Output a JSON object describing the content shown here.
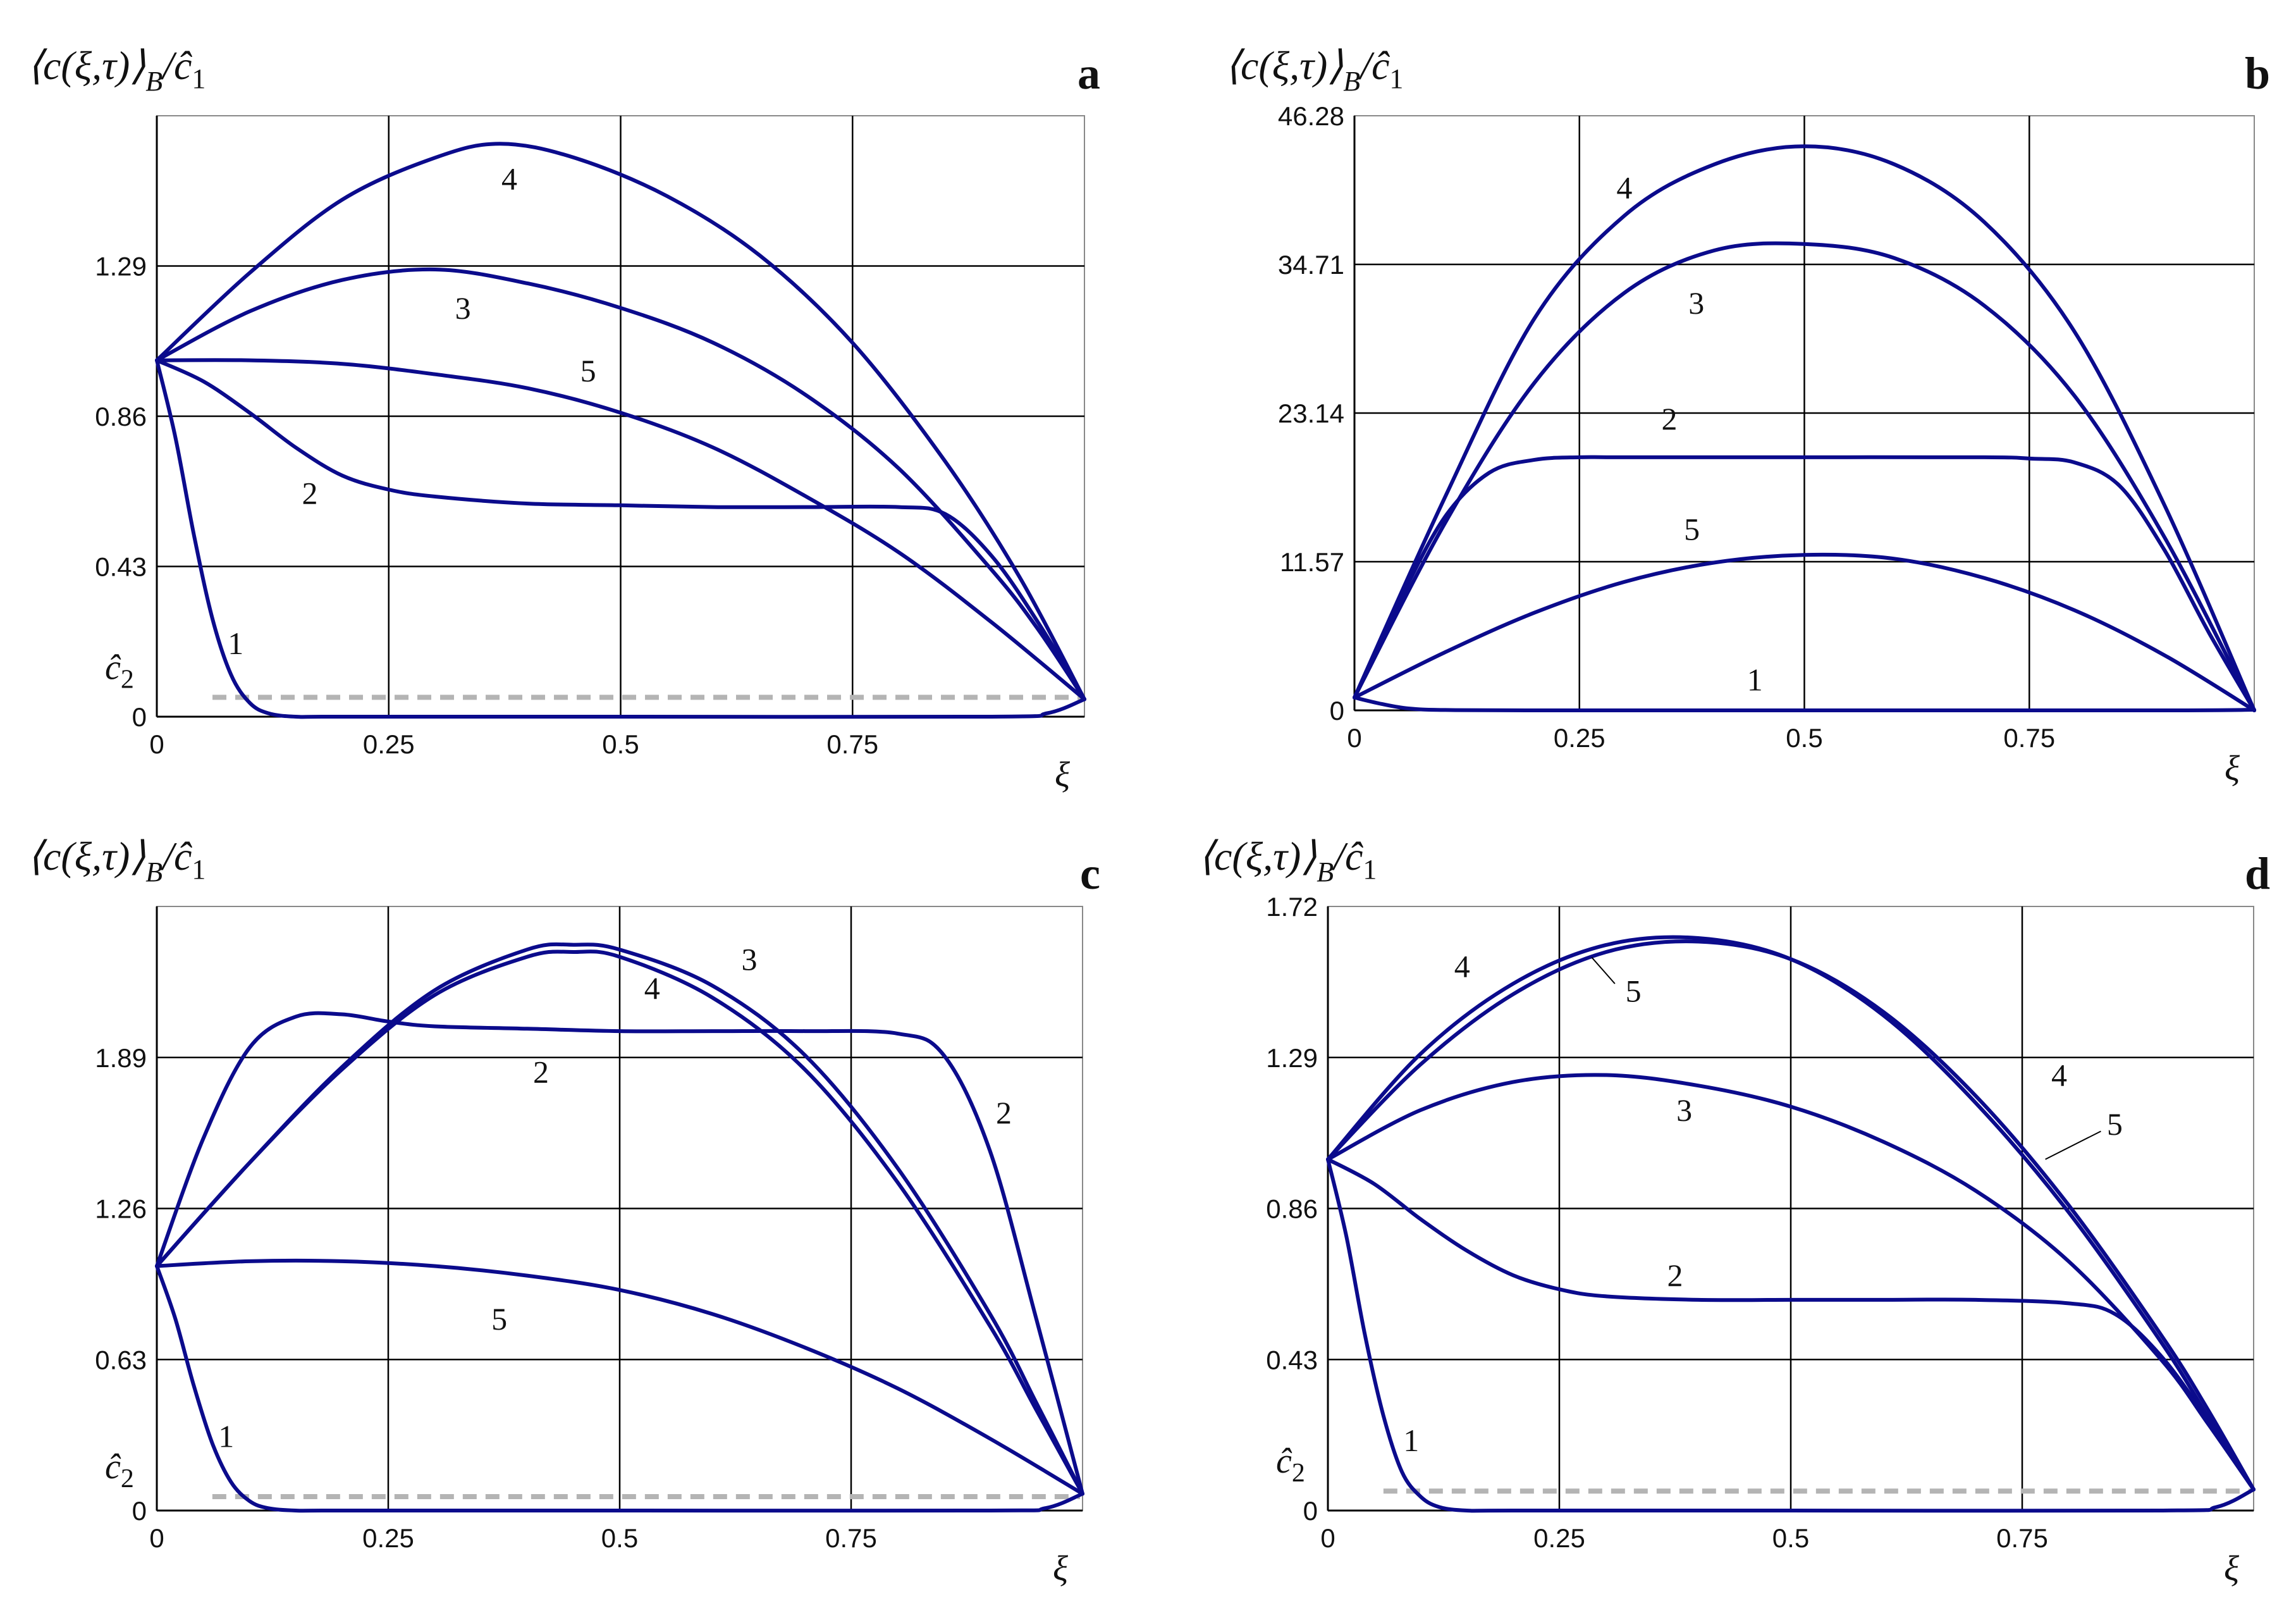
{
  "figure": {
    "y_label": "⟨c(ξ,τ)⟩B/ĉ1",
    "x_label": "ξ",
    "c2_label": "ĉ2"
  },
  "colors": {
    "curve": "#0b0b8c",
    "grid": "#000000",
    "dashed": "#b4b4b4"
  },
  "chart_data": [
    {
      "panel": "a",
      "type": "line",
      "x_ticks": [
        0,
        0.25,
        0.5,
        0.75
      ],
      "x_tick_labels": [
        "0",
        "0.25",
        "0.5",
        "0.75"
      ],
      "y_ticks": [
        0,
        0.43,
        0.86,
        1.29
      ],
      "y_tick_labels": [
        "0",
        "0.43",
        "0.86",
        "1.29"
      ],
      "xlim": [
        0,
        1
      ],
      "ylim": [
        0,
        1.72
      ],
      "dashed_level": 0.05,
      "show_c2": true,
      "series": [
        {
          "name": "1",
          "x": [
            0,
            0.02,
            0.04,
            0.06,
            0.08,
            0.1,
            0.12,
            0.15,
            0.2,
            0.5,
            0.9,
            0.96,
            1.0
          ],
          "y": [
            1.02,
            0.8,
            0.52,
            0.28,
            0.12,
            0.04,
            0.01,
            0.0,
            0.0,
            0.0,
            0.0,
            0.01,
            0.05
          ]
        },
        {
          "name": "2",
          "x": [
            0,
            0.05,
            0.1,
            0.15,
            0.2,
            0.25,
            0.3,
            0.4,
            0.5,
            0.6,
            0.7,
            0.8,
            0.85,
            0.9,
            0.95,
            1.0
          ],
          "y": [
            1.02,
            0.96,
            0.87,
            0.77,
            0.69,
            0.65,
            0.63,
            0.61,
            0.605,
            0.6,
            0.6,
            0.6,
            0.58,
            0.46,
            0.27,
            0.05
          ]
        },
        {
          "name": "3",
          "x": [
            0,
            0.1,
            0.2,
            0.3,
            0.4,
            0.5,
            0.6,
            0.7,
            0.8,
            0.9,
            0.95,
            1.0
          ],
          "y": [
            1.02,
            1.16,
            1.25,
            1.28,
            1.24,
            1.17,
            1.07,
            0.92,
            0.71,
            0.42,
            0.25,
            0.05
          ]
        },
        {
          "name": "4",
          "x": [
            0,
            0.1,
            0.2,
            0.3,
            0.37,
            0.45,
            0.55,
            0.65,
            0.75,
            0.85,
            0.93,
            1.0
          ],
          "y": [
            1.02,
            1.27,
            1.48,
            1.6,
            1.64,
            1.6,
            1.49,
            1.32,
            1.07,
            0.73,
            0.4,
            0.05
          ]
        },
        {
          "name": "5",
          "x": [
            0,
            0.1,
            0.2,
            0.3,
            0.4,
            0.5,
            0.6,
            0.7,
            0.8,
            0.9,
            1.0
          ],
          "y": [
            1.02,
            1.02,
            1.01,
            0.98,
            0.94,
            0.87,
            0.77,
            0.63,
            0.47,
            0.27,
            0.05
          ]
        }
      ],
      "labels": [
        {
          "text": "4",
          "x": 0.38,
          "y": 1.54
        },
        {
          "text": "3",
          "x": 0.33,
          "y": 1.17
        },
        {
          "text": "5",
          "x": 0.465,
          "y": 0.99
        },
        {
          "text": "2",
          "x": 0.165,
          "y": 0.64
        },
        {
          "text": "1",
          "x": 0.085,
          "y": 0.21
        }
      ]
    },
    {
      "panel": "b",
      "type": "line",
      "x_ticks": [
        0,
        0.25,
        0.5,
        0.75
      ],
      "x_tick_labels": [
        "0",
        "0.25",
        "0.5",
        "0.75"
      ],
      "y_ticks": [
        0,
        11.57,
        23.14,
        34.71,
        46.28
      ],
      "y_tick_labels": [
        "0",
        "11.57",
        "23.14",
        "34.71",
        "46.28"
      ],
      "xlim": [
        0,
        1
      ],
      "ylim": [
        0,
        46.28
      ],
      "dashed_level": null,
      "show_c2": false,
      "series": [
        {
          "name": "1",
          "x": [
            0,
            0.03,
            0.06,
            0.1,
            0.2,
            0.5,
            0.9,
            1.0
          ],
          "y": [
            1.0,
            0.5,
            0.15,
            0.03,
            0.0,
            0.0,
            0.0,
            0.05
          ]
        },
        {
          "name": "2",
          "x": [
            0,
            0.05,
            0.1,
            0.15,
            0.2,
            0.25,
            0.3,
            0.5,
            0.7,
            0.75,
            0.8,
            0.85,
            0.9,
            0.95,
            1.0
          ],
          "y": [
            1.0,
            8.5,
            15.0,
            18.5,
            19.5,
            19.7,
            19.7,
            19.7,
            19.7,
            19.6,
            19.3,
            17.5,
            12.5,
            6.0,
            0.0
          ]
        },
        {
          "name": "3",
          "x": [
            0,
            0.1,
            0.2,
            0.3,
            0.4,
            0.5,
            0.6,
            0.7,
            0.8,
            0.9,
            1.0
          ],
          "y": [
            1.0,
            14.5,
            25.5,
            32.5,
            35.8,
            36.3,
            35.2,
            31.5,
            24.5,
            13.5,
            0.0
          ]
        },
        {
          "name": "4",
          "x": [
            0,
            0.1,
            0.2,
            0.3,
            0.4,
            0.5,
            0.6,
            0.7,
            0.8,
            0.9,
            1.0
          ],
          "y": [
            1.0,
            16.5,
            30.5,
            38.5,
            42.5,
            43.9,
            42.5,
            38.0,
            29.5,
            16.0,
            0.0
          ]
        },
        {
          "name": "5",
          "x": [
            0,
            0.1,
            0.2,
            0.3,
            0.4,
            0.5,
            0.6,
            0.7,
            0.8,
            0.9,
            1.0
          ],
          "y": [
            1.0,
            4.5,
            7.6,
            10.0,
            11.5,
            12.1,
            11.8,
            10.3,
            7.8,
            4.3,
            0.0
          ]
        }
      ],
      "labels": [
        {
          "text": "4",
          "x": 0.3,
          "y": 40.7
        },
        {
          "text": "3",
          "x": 0.38,
          "y": 31.7
        },
        {
          "text": "2",
          "x": 0.35,
          "y": 22.7
        },
        {
          "text": "5",
          "x": 0.375,
          "y": 14.1
        },
        {
          "text": "1",
          "x": 0.445,
          "y": 2.4
        }
      ]
    },
    {
      "panel": "c",
      "type": "line",
      "x_ticks": [
        0,
        0.25,
        0.5,
        0.75
      ],
      "x_tick_labels": [
        "0",
        "0.25",
        "0.5",
        "0.75"
      ],
      "y_ticks": [
        0,
        0.63,
        1.26,
        1.89
      ],
      "y_tick_labels": [
        "0",
        "0.63",
        "1.26",
        "1.89"
      ],
      "xlim": [
        0,
        1
      ],
      "ylim": [
        0,
        2.52
      ],
      "dashed_level": 0.05,
      "show_c2": true,
      "series": [
        {
          "name": "1",
          "x": [
            0,
            0.02,
            0.04,
            0.06,
            0.08,
            0.1,
            0.12,
            0.15,
            0.2,
            0.5,
            0.9,
            0.96,
            1.0
          ],
          "y": [
            1.02,
            0.8,
            0.52,
            0.28,
            0.12,
            0.04,
            0.01,
            0.0,
            0.0,
            0.0,
            0.0,
            0.01,
            0.07
          ]
        },
        {
          "name": "2",
          "x": [
            0,
            0.05,
            0.1,
            0.15,
            0.2,
            0.25,
            0.3,
            0.4,
            0.5,
            0.6,
            0.7,
            0.8,
            0.85,
            0.9,
            0.95,
            1.0
          ],
          "y": [
            1.02,
            1.55,
            1.93,
            2.06,
            2.07,
            2.04,
            2.02,
            2.01,
            2.0,
            2.0,
            2.0,
            1.99,
            1.9,
            1.5,
            0.8,
            0.07
          ]
        },
        {
          "name": "3",
          "x": [
            0,
            0.1,
            0.2,
            0.3,
            0.4,
            0.45,
            0.5,
            0.6,
            0.7,
            0.8,
            0.9,
            0.95,
            1.0
          ],
          "y": [
            1.02,
            1.45,
            1.85,
            2.17,
            2.34,
            2.36,
            2.34,
            2.19,
            1.9,
            1.43,
            0.82,
            0.45,
            0.07
          ]
        },
        {
          "name": "4",
          "x": [
            0,
            0.1,
            0.2,
            0.3,
            0.4,
            0.45,
            0.5,
            0.6,
            0.7,
            0.8,
            0.9,
            0.95,
            1.0
          ],
          "y": [
            1.02,
            1.45,
            1.84,
            2.15,
            2.31,
            2.33,
            2.31,
            2.14,
            1.84,
            1.37,
            0.77,
            0.42,
            0.07
          ]
        },
        {
          "name": "5",
          "x": [
            0,
            0.1,
            0.2,
            0.3,
            0.4,
            0.5,
            0.6,
            0.7,
            0.8,
            0.9,
            1.0
          ],
          "y": [
            1.02,
            1.04,
            1.04,
            1.02,
            0.98,
            0.92,
            0.82,
            0.68,
            0.51,
            0.3,
            0.07
          ]
        }
      ],
      "labels": [
        {
          "text": "3",
          "x": 0.64,
          "y": 2.3
        },
        {
          "text": "4",
          "x": 0.535,
          "y": 2.18
        },
        {
          "text": "2",
          "x": 0.415,
          "y": 1.83
        },
        {
          "text": "2",
          "x": 0.915,
          "y": 1.66
        },
        {
          "text": "5",
          "x": 0.37,
          "y": 0.8
        },
        {
          "text": "1",
          "x": 0.075,
          "y": 0.31
        }
      ]
    },
    {
      "panel": "d",
      "type": "line",
      "x_ticks": [
        0,
        0.25,
        0.5,
        0.75
      ],
      "x_tick_labels": [
        "0",
        "0.25",
        "0.5",
        "0.75"
      ],
      "y_ticks": [
        0,
        0.43,
        0.86,
        1.29,
        1.72
      ],
      "y_tick_labels": [
        "0",
        "0.43",
        "0.86",
        "1.29",
        "1.72"
      ],
      "xlim": [
        0,
        1
      ],
      "ylim": [
        0,
        1.72
      ],
      "dashed_level": 0.05,
      "show_c2": true,
      "series": [
        {
          "name": "1",
          "x": [
            0,
            0.02,
            0.04,
            0.06,
            0.08,
            0.1,
            0.12,
            0.15,
            0.2,
            0.5,
            0.9,
            0.96,
            1.0
          ],
          "y": [
            1.0,
            0.78,
            0.5,
            0.27,
            0.11,
            0.04,
            0.01,
            0.0,
            0.0,
            0.0,
            0.0,
            0.01,
            0.06
          ]
        },
        {
          "name": "2",
          "x": [
            0,
            0.05,
            0.1,
            0.15,
            0.2,
            0.25,
            0.3,
            0.4,
            0.5,
            0.6,
            0.7,
            0.8,
            0.85,
            0.9,
            0.95,
            1.0
          ],
          "y": [
            1.0,
            0.93,
            0.83,
            0.74,
            0.67,
            0.63,
            0.61,
            0.6,
            0.6,
            0.6,
            0.6,
            0.59,
            0.56,
            0.44,
            0.26,
            0.06
          ]
        },
        {
          "name": "3",
          "x": [
            0,
            0.1,
            0.2,
            0.3,
            0.4,
            0.5,
            0.6,
            0.7,
            0.8,
            0.9,
            0.95,
            1.0
          ],
          "y": [
            1.0,
            1.14,
            1.22,
            1.24,
            1.21,
            1.15,
            1.05,
            0.91,
            0.71,
            0.43,
            0.25,
            0.06
          ]
        },
        {
          "name": "4",
          "x": [
            0,
            0.1,
            0.2,
            0.3,
            0.4,
            0.5,
            0.6,
            0.7,
            0.8,
            0.9,
            0.95,
            1.0
          ],
          "y": [
            1.0,
            1.3,
            1.5,
            1.61,
            1.63,
            1.57,
            1.41,
            1.16,
            0.85,
            0.48,
            0.27,
            0.06
          ]
        },
        {
          "name": "5",
          "x": [
            0,
            0.1,
            0.2,
            0.3,
            0.4,
            0.5,
            0.6,
            0.7,
            0.8,
            0.9,
            0.95,
            1.0
          ],
          "y": [
            1.0,
            1.27,
            1.47,
            1.59,
            1.62,
            1.57,
            1.42,
            1.18,
            0.87,
            0.5,
            0.29,
            0.06
          ]
        }
      ],
      "labels": [
        {
          "text": "4",
          "x": 0.145,
          "y": 1.55
        },
        {
          "text": "5",
          "x": 0.33,
          "y": 1.48
        },
        {
          "text": "4",
          "x": 0.79,
          "y": 1.24
        },
        {
          "text": "5",
          "x": 0.85,
          "y": 1.1
        },
        {
          "text": "3",
          "x": 0.385,
          "y": 1.14
        },
        {
          "text": "2",
          "x": 0.375,
          "y": 0.67
        },
        {
          "text": "1",
          "x": 0.09,
          "y": 0.2
        }
      ]
    }
  ]
}
